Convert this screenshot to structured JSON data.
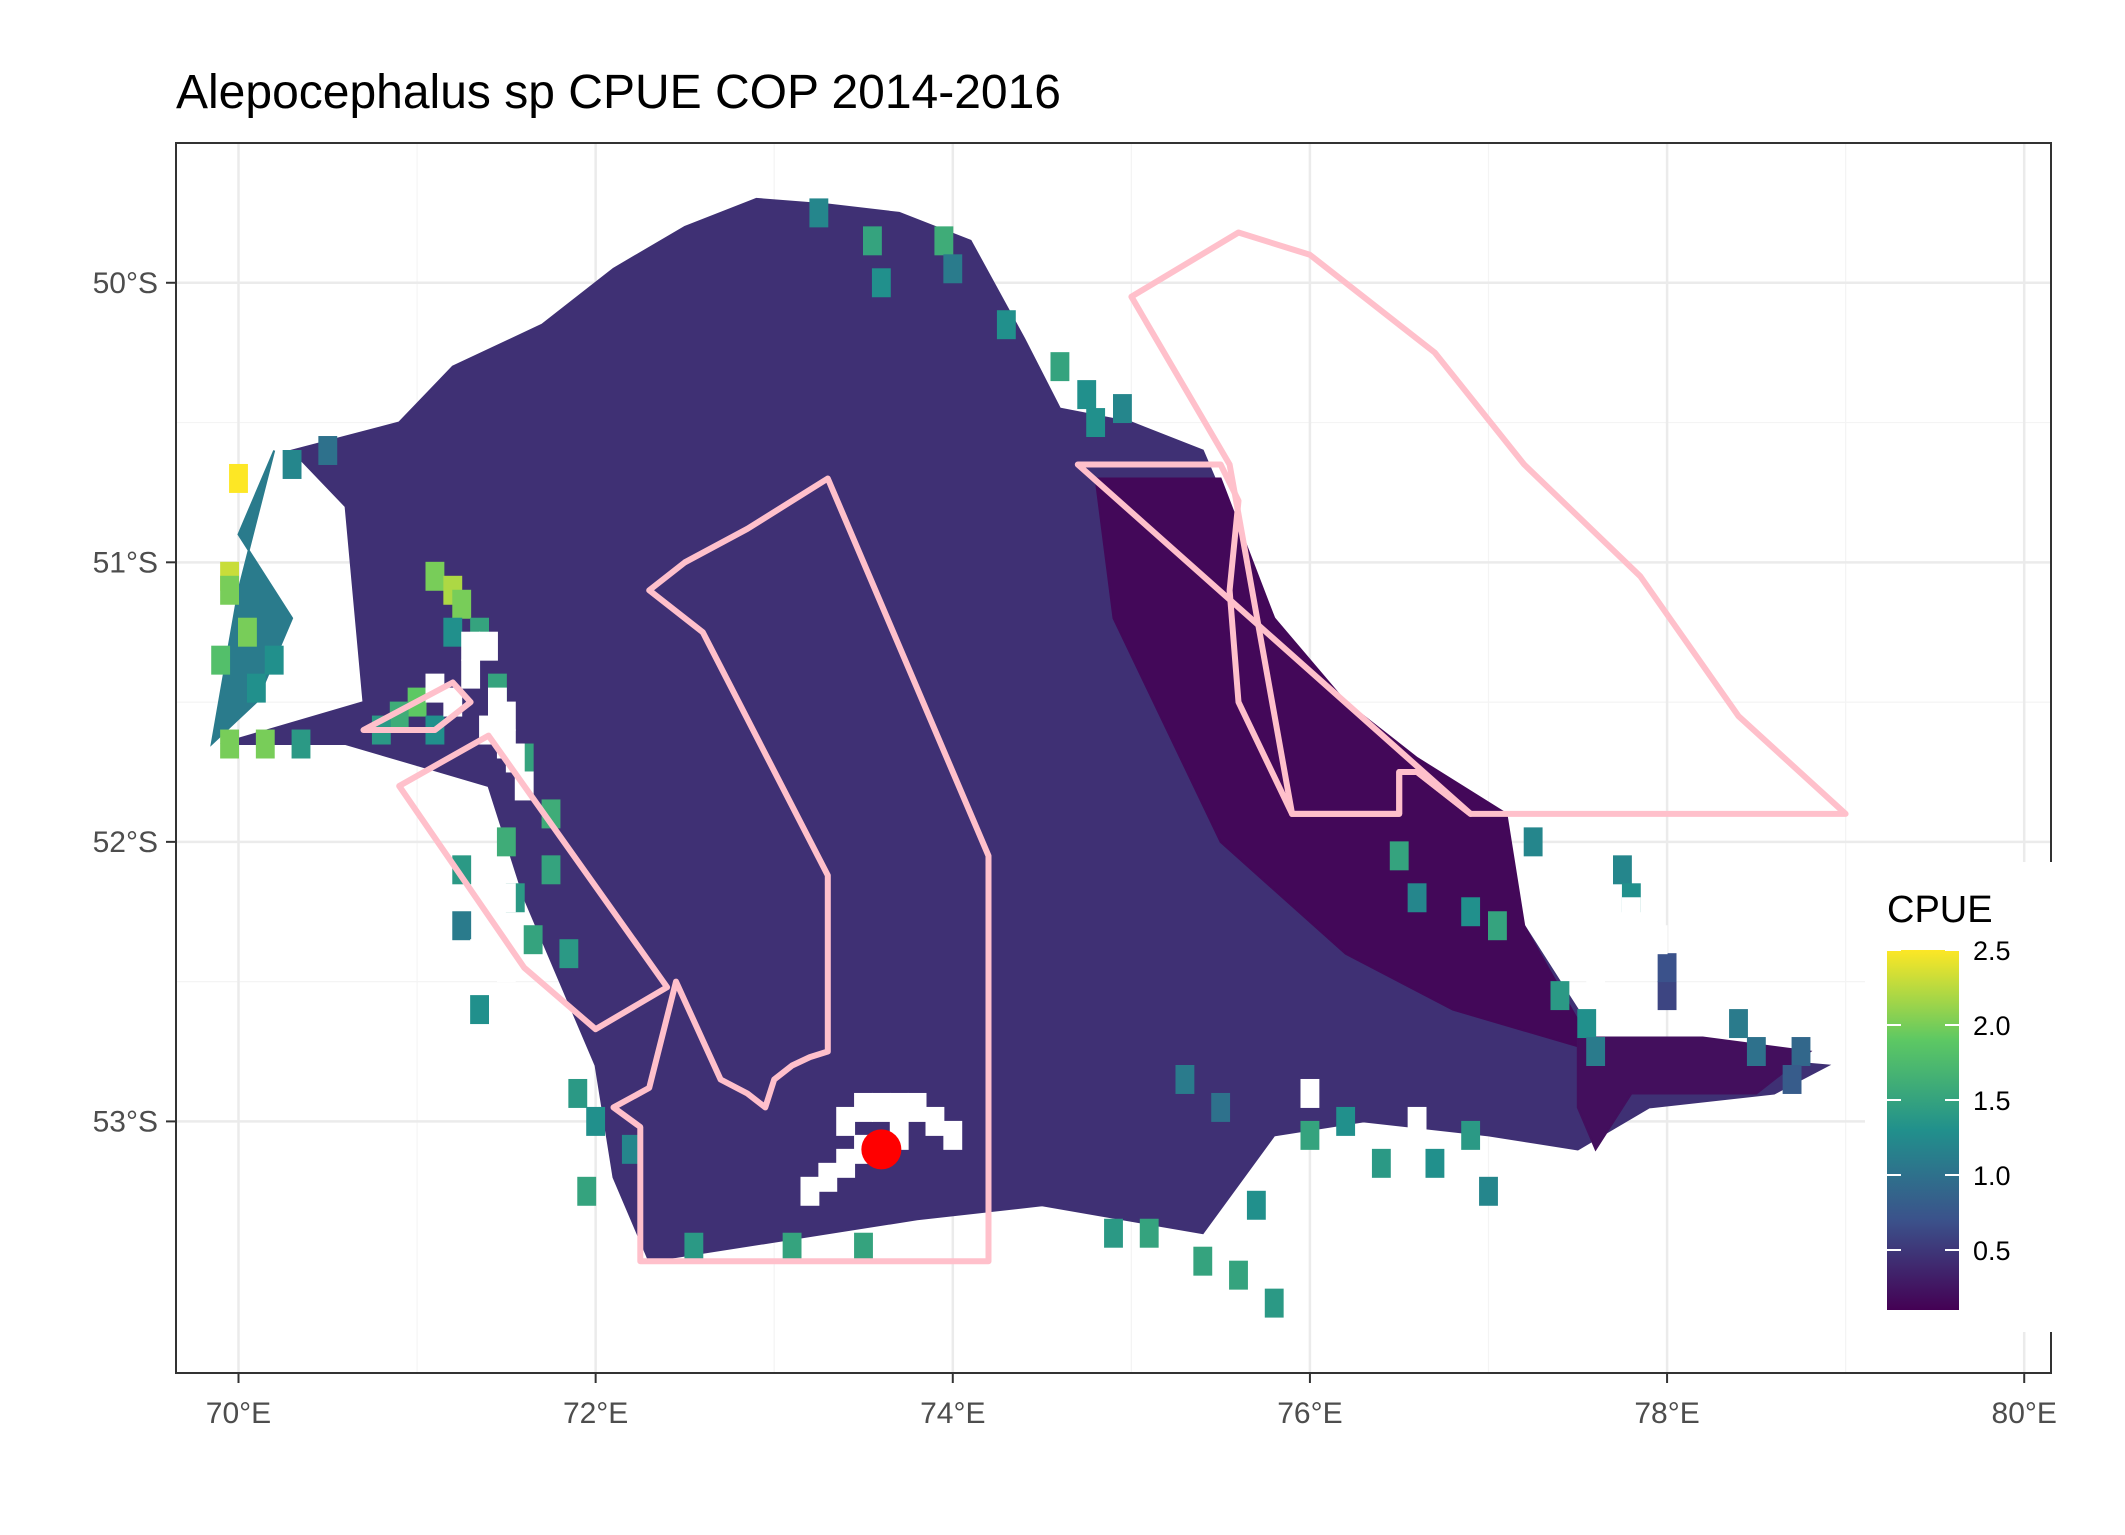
{
  "chart_data": {
    "type": "heatmap",
    "title": "Alepocephalus sp  CPUE COP 2014-2016",
    "xlabel": "",
    "ylabel": "",
    "xlim": [
      69.65,
      80.15
    ],
    "ylim": [
      -53.9,
      -49.5
    ],
    "x_ticks": [
      70,
      72,
      74,
      76,
      78,
      80
    ],
    "x_tick_labels": [
      "70°E",
      "72°E",
      "74°E",
      "76°E",
      "78°E",
      "80°E"
    ],
    "y_ticks": [
      -50,
      -51,
      -52,
      -53
    ],
    "y_tick_labels": [
      "50°S",
      "51°S",
      "52°S",
      "53°S"
    ],
    "grid": true,
    "colorscale": "viridis",
    "color_range": [
      0.1,
      2.5
    ],
    "legend": {
      "title": "CPUE",
      "position": "right",
      "ticks": [
        0.5,
        1.0,
        1.5,
        2.0,
        2.5
      ],
      "tick_labels": [
        "0.5",
        "1.0",
        "1.5",
        "2.0",
        "2.5"
      ]
    },
    "cell_size": [
      0.1,
      0.1
    ],
    "cpue_regions": [
      {
        "name": "plateau",
        "value": 0.45,
        "polygon": [
          [
            69.9,
            -51.65
          ],
          [
            70.7,
            -51.5
          ],
          [
            70.6,
            -50.8
          ],
          [
            70.3,
            -50.6
          ],
          [
            70.9,
            -50.5
          ],
          [
            71.2,
            -50.3
          ],
          [
            71.7,
            -50.15
          ],
          [
            72.1,
            -49.95
          ],
          [
            72.5,
            -49.8
          ],
          [
            72.9,
            -49.7
          ],
          [
            73.3,
            -49.72
          ],
          [
            73.7,
            -49.75
          ],
          [
            74.1,
            -49.85
          ],
          [
            74.4,
            -50.2
          ],
          [
            74.6,
            -50.45
          ],
          [
            75.0,
            -50.5
          ],
          [
            75.4,
            -50.6
          ],
          [
            75.6,
            -50.9
          ],
          [
            75.8,
            -51.2
          ],
          [
            76.0,
            -51.4
          ],
          [
            76.3,
            -51.6
          ],
          [
            76.7,
            -51.8
          ],
          [
            77.2,
            -52.3
          ],
          [
            77.6,
            -52.7
          ],
          [
            78.0,
            -52.75
          ],
          [
            78.9,
            -52.8
          ],
          [
            78.6,
            -52.9
          ],
          [
            77.9,
            -52.95
          ],
          [
            77.5,
            -53.1
          ],
          [
            77.0,
            -53.05
          ],
          [
            76.3,
            -53.0
          ],
          [
            75.8,
            -53.05
          ],
          [
            75.4,
            -53.4
          ],
          [
            74.5,
            -53.3
          ],
          [
            73.8,
            -53.35
          ],
          [
            72.3,
            -53.5
          ],
          [
            72.1,
            -53.2
          ],
          [
            72.0,
            -52.8
          ],
          [
            71.6,
            -52.2
          ],
          [
            71.4,
            -51.8
          ],
          [
            70.6,
            -51.65
          ]
        ]
      },
      {
        "name": "western-margin",
        "value": 1.1,
        "polygon": [
          [
            69.85,
            -51.65
          ],
          [
            70.1,
            -51.5
          ],
          [
            70.3,
            -51.2
          ],
          [
            70.0,
            -50.9
          ],
          [
            70.2,
            -50.6
          ],
          [
            70.0,
            -51.1
          ]
        ]
      },
      {
        "name": "eastern-shelf",
        "value": 0.15,
        "polygon": [
          [
            74.8,
            -50.7
          ],
          [
            75.5,
            -50.7
          ],
          [
            75.8,
            -51.2
          ],
          [
            76.2,
            -51.5
          ],
          [
            76.6,
            -51.7
          ],
          [
            77.1,
            -51.9
          ],
          [
            77.2,
            -52.3
          ],
          [
            77.6,
            -52.75
          ],
          [
            76.8,
            -52.6
          ],
          [
            76.2,
            -52.4
          ],
          [
            75.5,
            -52.0
          ],
          [
            74.9,
            -51.2
          ]
        ]
      },
      {
        "name": "southeast-tail",
        "value": 0.2,
        "polygon": [
          [
            77.5,
            -52.7
          ],
          [
            78.2,
            -52.7
          ],
          [
            78.8,
            -52.75
          ],
          [
            78.5,
            -52.9
          ],
          [
            77.8,
            -52.9
          ],
          [
            77.6,
            -53.1
          ],
          [
            77.5,
            -52.95
          ]
        ]
      }
    ],
    "cpue_cells": [
      [
        70.0,
        -50.7,
        2.5
      ],
      [
        69.95,
        -51.05,
        2.3
      ],
      [
        69.95,
        -51.1,
        2.0
      ],
      [
        70.05,
        -51.25,
        2.0
      ],
      [
        69.9,
        -51.35,
        1.8
      ],
      [
        69.95,
        -51.65,
        2.0
      ],
      [
        70.15,
        -51.65,
        2.0
      ],
      [
        70.35,
        -51.65,
        1.4
      ],
      [
        70.1,
        -51.45,
        1.3
      ],
      [
        70.2,
        -51.35,
        1.3
      ],
      [
        70.3,
        -50.65,
        1.2
      ],
      [
        70.5,
        -50.6,
        1.0
      ],
      [
        71.1,
        -51.05,
        2.0
      ],
      [
        71.2,
        -51.1,
        2.2
      ],
      [
        71.25,
        -51.15,
        2.0
      ],
      [
        71.2,
        -51.25,
        1.3
      ],
      [
        71.35,
        -51.25,
        1.5
      ],
      [
        71.0,
        -51.5,
        1.9
      ],
      [
        70.9,
        -51.55,
        1.6
      ],
      [
        70.8,
        -51.6,
        1.4
      ],
      [
        71.1,
        -51.6,
        1.3
      ],
      [
        71.45,
        -51.45,
        1.5
      ],
      [
        71.6,
        -51.7,
        1.5
      ],
      [
        71.75,
        -51.9,
        1.6
      ],
      [
        71.75,
        -52.1,
        1.5
      ],
      [
        71.5,
        -52.0,
        1.6
      ],
      [
        71.55,
        -52.2,
        1.4
      ],
      [
        71.65,
        -52.35,
        1.5
      ],
      [
        71.85,
        -52.4,
        1.4
      ],
      [
        71.25,
        -52.1,
        1.4
      ],
      [
        71.25,
        -52.3,
        1.1
      ],
      [
        71.35,
        -52.6,
        1.3
      ],
      [
        71.9,
        -52.9,
        1.4
      ],
      [
        72.0,
        -53.0,
        1.3
      ],
      [
        72.2,
        -53.1,
        1.2
      ],
      [
        71.95,
        -53.25,
        1.5
      ],
      [
        72.55,
        -53.45,
        1.4
      ],
      [
        73.1,
        -53.45,
        1.5
      ],
      [
        73.5,
        -53.45,
        1.5
      ],
      [
        74.9,
        -53.4,
        1.4
      ],
      [
        75.1,
        -53.4,
        1.5
      ],
      [
        75.4,
        -53.5,
        1.5
      ],
      [
        75.6,
        -53.55,
        1.5
      ],
      [
        75.8,
        -53.65,
        1.4
      ],
      [
        75.7,
        -53.3,
        1.3
      ],
      [
        76.0,
        -53.05,
        1.5
      ],
      [
        76.2,
        -53.0,
        1.3
      ],
      [
        76.4,
        -53.15,
        1.4
      ],
      [
        76.7,
        -53.15,
        1.3
      ],
      [
        76.9,
        -53.05,
        1.4
      ],
      [
        77.0,
        -53.25,
        1.2
      ],
      [
        73.25,
        -49.75,
        1.2
      ],
      [
        73.55,
        -49.85,
        1.5
      ],
      [
        73.95,
        -49.85,
        1.6
      ],
      [
        74.0,
        -49.95,
        1.1
      ],
      [
        73.6,
        -50.0,
        1.3
      ],
      [
        74.3,
        -50.15,
        1.3
      ],
      [
        74.6,
        -50.3,
        1.5
      ],
      [
        74.75,
        -50.4,
        1.3
      ],
      [
        74.95,
        -50.45,
        1.2
      ],
      [
        74.8,
        -50.5,
        1.3
      ],
      [
        77.25,
        -52.0,
        1.2
      ],
      [
        77.75,
        -52.1,
        1.2
      ],
      [
        77.8,
        -52.2,
        1.3
      ],
      [
        76.5,
        -52.05,
        1.5
      ],
      [
        76.6,
        -52.2,
        1.2
      ],
      [
        76.9,
        -52.25,
        1.3
      ],
      [
        77.05,
        -52.3,
        1.5
      ],
      [
        77.4,
        -52.55,
        1.4
      ],
      [
        77.55,
        -52.65,
        1.3
      ],
      [
        77.6,
        -52.75,
        1.1
      ],
      [
        78.4,
        -52.65,
        1.1
      ],
      [
        78.5,
        -52.75,
        1.0
      ],
      [
        78.75,
        -52.75,
        0.9
      ],
      [
        78.7,
        -52.85,
        0.8
      ],
      [
        78.0,
        -52.55,
        0.6
      ],
      [
        78.0,
        -52.45,
        0.7
      ],
      [
        75.3,
        -52.85,
        1.1
      ],
      [
        75.5,
        -52.95,
        1.0
      ]
    ],
    "no_data_cells": [
      [
        71.3,
        -51.3
      ],
      [
        71.4,
        -51.3
      ],
      [
        71.3,
        -51.4
      ],
      [
        71.45,
        -51.5
      ],
      [
        71.5,
        -51.55
      ],
      [
        71.4,
        -51.6
      ],
      [
        71.2,
        -51.5
      ],
      [
        71.1,
        -51.45
      ],
      [
        71.5,
        -51.65
      ],
      [
        71.55,
        -51.7
      ],
      [
        71.6,
        -51.8
      ],
      [
        71.2,
        -51.85
      ],
      [
        71.25,
        -51.9
      ],
      [
        71.35,
        -52.4
      ],
      [
        71.5,
        -52.45
      ],
      [
        71.45,
        -52.35
      ],
      [
        71.5,
        -52.2
      ],
      [
        73.4,
        -53.0
      ],
      [
        73.5,
        -52.95
      ],
      [
        73.6,
        -52.95
      ],
      [
        73.7,
        -52.95
      ],
      [
        73.8,
        -52.95
      ],
      [
        73.9,
        -53.0
      ],
      [
        74.0,
        -53.05
      ],
      [
        73.7,
        -53.05
      ],
      [
        73.5,
        -53.1
      ],
      [
        73.4,
        -53.15
      ],
      [
        73.3,
        -53.2
      ],
      [
        73.2,
        -53.25
      ],
      [
        76.0,
        -52.9
      ],
      [
        76.6,
        -53.0
      ],
      [
        77.6,
        -52.5
      ],
      [
        77.95,
        -52.35
      ],
      [
        77.8,
        -52.25
      ]
    ],
    "areas": [
      {
        "name": "western-triangle",
        "polygon": [
          [
            70.7,
            -51.6
          ],
          [
            71.1,
            -51.6
          ],
          [
            71.3,
            -51.5
          ],
          [
            71.2,
            -51.43
          ]
        ]
      },
      {
        "name": "western-strip",
        "polygon": [
          [
            70.9,
            -51.8
          ],
          [
            71.4,
            -51.62
          ],
          [
            72.4,
            -52.52
          ],
          [
            72.0,
            -52.67
          ],
          [
            71.6,
            -52.45
          ]
        ]
      },
      {
        "name": "central-east-block",
        "polygon": [
          [
            72.25,
            -53.5
          ],
          [
            74.2,
            -53.5
          ],
          [
            74.2,
            -52.05
          ],
          [
            73.3,
            -50.7
          ],
          [
            72.85,
            -50.88
          ],
          [
            72.5,
            -51.0
          ],
          [
            72.3,
            -51.1
          ],
          [
            72.6,
            -51.25
          ],
          [
            73.3,
            -52.12
          ],
          [
            73.3,
            -52.75
          ],
          [
            73.2,
            -52.77
          ],
          [
            73.1,
            -52.8
          ],
          [
            73.0,
            -52.85
          ],
          [
            72.95,
            -52.95
          ],
          [
            72.85,
            -52.9
          ],
          [
            72.7,
            -52.85
          ],
          [
            72.45,
            -52.5
          ],
          [
            72.3,
            -52.88
          ],
          [
            72.1,
            -52.95
          ],
          [
            72.25,
            -53.02
          ]
        ]
      },
      {
        "name": "eastern-strip",
        "polygon": [
          [
            74.7,
            -50.65
          ],
          [
            75.5,
            -50.65
          ],
          [
            75.6,
            -50.78
          ],
          [
            75.55,
            -51.1
          ],
          [
            75.6,
            -51.5
          ],
          [
            75.9,
            -51.9
          ],
          [
            76.5,
            -51.9
          ],
          [
            76.5,
            -51.75
          ],
          [
            76.6,
            -51.75
          ],
          [
            76.9,
            -51.9
          ]
        ]
      },
      {
        "name": "northeast-sector",
        "polygon": [
          [
            75.55,
            -50.65
          ],
          [
            75.0,
            -50.05
          ],
          [
            75.6,
            -49.82
          ],
          [
            76.0,
            -49.9
          ],
          [
            76.7,
            -50.25
          ],
          [
            77.2,
            -50.65
          ],
          [
            77.85,
            -51.05
          ],
          [
            78.4,
            -51.55
          ],
          [
            79.0,
            -51.9
          ],
          [
            76.9,
            -51.9
          ],
          [
            76.6,
            -51.75
          ],
          [
            76.5,
            -51.75
          ],
          [
            76.5,
            -51.9
          ],
          [
            75.9,
            -51.9
          ]
        ]
      }
    ],
    "area_color": "#ffc0cb",
    "marker": {
      "x": 73.6,
      "y": -53.1,
      "color": "#ff0000"
    }
  }
}
